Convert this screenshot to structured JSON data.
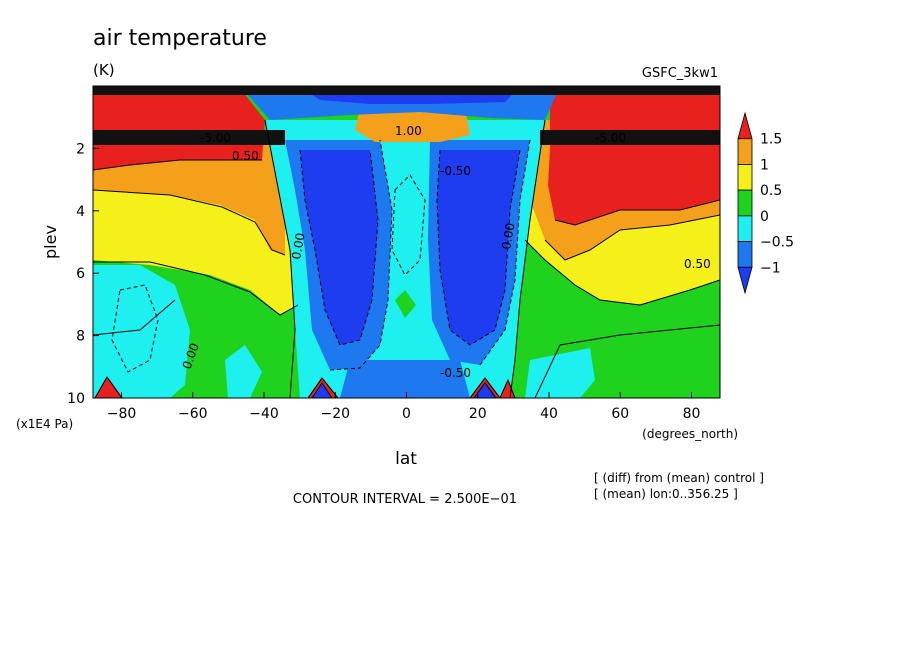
{
  "chart_data": {
    "type": "heatmap",
    "subtype": "filled-contour",
    "title": "air temperature",
    "units": "(K)",
    "model_label": "GSFC_3kw1",
    "xlabel": "lat",
    "x_units": "(degrees_north)",
    "ylabel": "plev",
    "y_units": "(x1E4 Pa)",
    "xlim": [
      -88,
      88
    ],
    "ylim": [
      10,
      0
    ],
    "x_ticks": [
      -80,
      -60,
      -40,
      -20,
      0,
      20,
      40,
      60,
      80
    ],
    "x_tick_labels": [
      "−80",
      "−60",
      "−40",
      "−20",
      "0",
      "20",
      "40",
      "60",
      "80"
    ],
    "y_ticks": [
      2,
      4,
      6,
      8,
      10
    ],
    "y_tick_labels": [
      "2",
      "4",
      "6",
      "8",
      "10"
    ],
    "contour_interval_text": "CONTOUR INTERVAL = 2.500E−01",
    "notes": [
      "[ (diff) from (mean) control ]",
      "[ (mean) lon:0..356.25 ]"
    ],
    "colorbar": {
      "labels": [
        "1.5",
        "1",
        "0.5",
        "0",
        "−0.5",
        "−1"
      ],
      "levels": [
        1.5,
        1,
        0.5,
        0,
        -0.5,
        -1
      ],
      "colors": [
        "#e8201e",
        "#f5a01a",
        "#f5f01a",
        "#1ed21e",
        "#1ef0f0",
        "#1e78f0",
        "#1e3cf0"
      ]
    },
    "contour_labels": [
      "-5.00",
      "-5.00",
      "0.50",
      "0.50",
      "-0.50",
      "-0.50",
      "0.00",
      "0.00",
      "0.00",
      "1.00"
    ],
    "legend": "colorbar-right",
    "grid": false
  }
}
